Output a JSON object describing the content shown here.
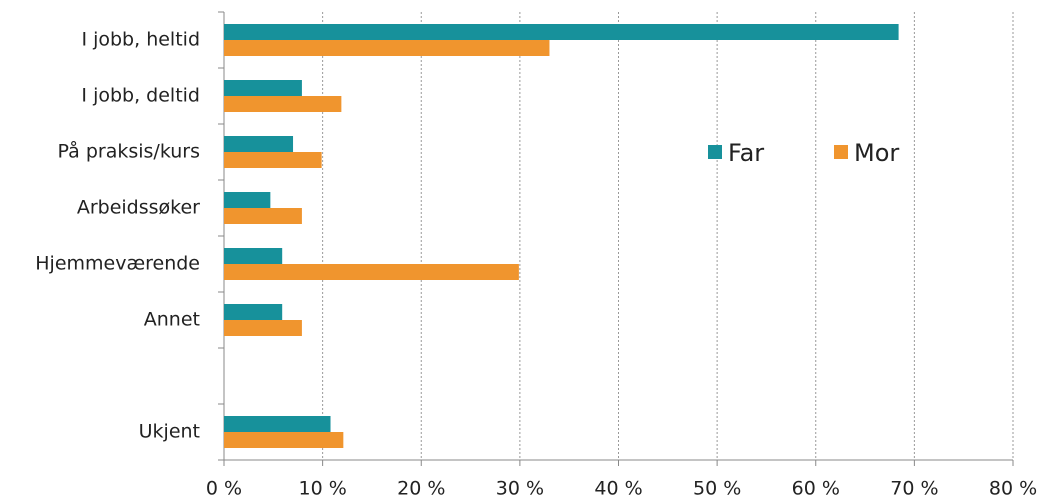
{
  "chart_data": {
    "type": "hbar",
    "categories": [
      "I jobb, heltid",
      "I jobb, deltid",
      "På praksis/kurs",
      "Arbeidssøker",
      "Hjemmeværende",
      "Annet",
      null,
      "Ukjent"
    ],
    "series": [
      {
        "name": "Far",
        "color": "#17919b",
        "values": [
          68.4,
          7.9,
          7.0,
          4.7,
          5.9,
          5.9,
          null,
          10.8
        ]
      },
      {
        "name": "Mor",
        "color": "#f0952e",
        "values": [
          33.0,
          11.9,
          9.9,
          7.9,
          29.9,
          7.9,
          null,
          12.1
        ]
      }
    ],
    "xlim": [
      0,
      80
    ],
    "xticks": [
      {
        "value": 0,
        "label": "0 %"
      },
      {
        "value": 10,
        "label": "10 %"
      },
      {
        "value": 20,
        "label": "20 %"
      },
      {
        "value": 30,
        "label": "30 %"
      },
      {
        "value": 40,
        "label": "40 %"
      },
      {
        "value": 50,
        "label": "50 %"
      },
      {
        "value": 60,
        "label": "60 %"
      },
      {
        "value": 70,
        "label": "70 %"
      },
      {
        "value": 80,
        "label": "80 %"
      }
    ],
    "grid": true,
    "legend": "right"
  }
}
